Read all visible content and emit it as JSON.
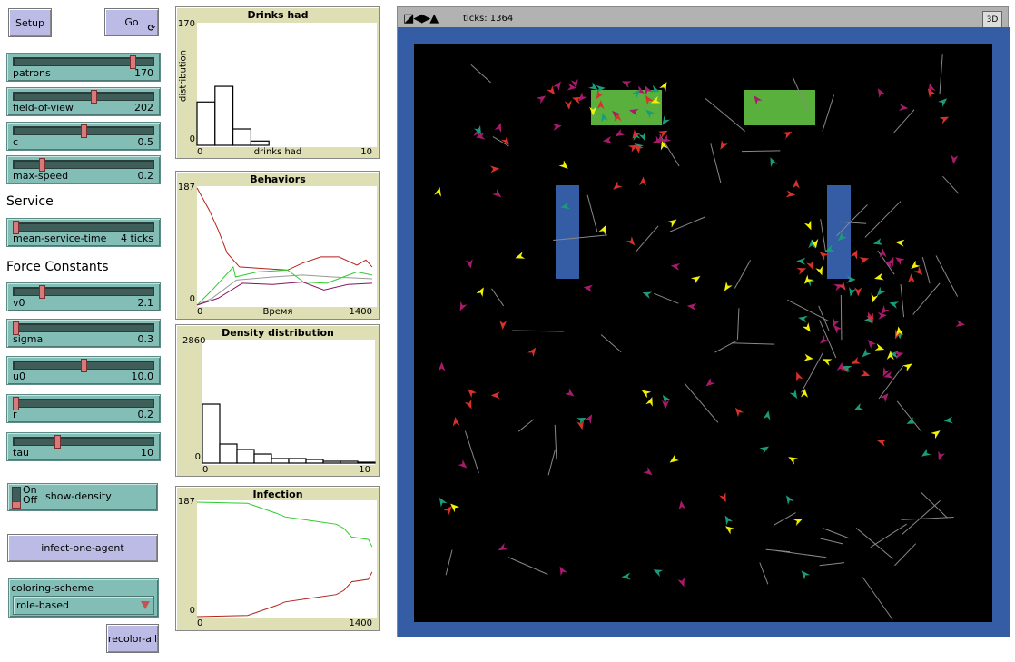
{
  "buttons": {
    "setup": "Setup",
    "go": "Go",
    "infect": "infect-one-agent",
    "recolor": "recolor-all"
  },
  "sliders": [
    {
      "label": "patrons",
      "value": "170",
      "level": 0.85
    },
    {
      "label": "field-of-view",
      "value": "202",
      "level": 0.57
    },
    {
      "label": "c",
      "value": "0.5",
      "level": 0.5
    },
    {
      "label": "max-speed",
      "value": "0.2",
      "level": 0.2
    },
    {
      "label": "mean-service-time",
      "value": "4 ticks",
      "level": 0.01
    },
    {
      "label": "v0",
      "value": "2.1",
      "level": 0.2
    },
    {
      "label": "sigma",
      "value": "0.3",
      "level": 0.01
    },
    {
      "label": "u0",
      "value": "10.0",
      "level": 0.5
    },
    {
      "label": "r",
      "value": "0.2",
      "level": 0.01
    },
    {
      "label": "tau",
      "value": "10",
      "level": 0.31
    }
  ],
  "sections": {
    "service": "Service",
    "force": "Force Constants"
  },
  "switch": {
    "label": "show-density",
    "on": "On",
    "off": "Off",
    "state": "off"
  },
  "chooser": {
    "label": "coloring-scheme",
    "value": "role-based"
  },
  "view": {
    "ticks_label": "ticks: 1364",
    "btn3d": "3D"
  },
  "colors": {
    "red": "#d73229",
    "yellow": "#f1f105",
    "magenta": "#a71b6a",
    "teal": "#1a9b7a",
    "green": "#59b03c",
    "blue": "#345da6",
    "plot_bg": "#dfdfb6",
    "widget": "#82bdb6",
    "button": "#bbbbe6"
  },
  "chart_data": [
    {
      "type": "bar",
      "title": "Drinks had",
      "xlabel": "drinks had",
      "ylabel": "distribution",
      "xlim": [
        0,
        10
      ],
      "ylim": [
        0,
        170
      ],
      "x_ticks": [
        "0",
        "10"
      ],
      "y_ticks": [
        "0",
        "170"
      ],
      "bins": [
        0,
        1,
        2,
        3
      ],
      "values": [
        61,
        83,
        23,
        6
      ]
    },
    {
      "type": "line",
      "title": "Behaviors",
      "xlabel": "Время",
      "xlim": [
        0,
        1400
      ],
      "ylim": [
        0,
        187
      ],
      "x_ticks": [
        "0",
        "1400"
      ],
      "y_ticks": [
        "0",
        "187"
      ],
      "series": [
        {
          "color": "#b5221d",
          "x": [
            0,
            94,
            165,
            235,
            330,
            470,
            705,
            820,
            965,
            1105,
            1245,
            1315,
            1364
          ],
          "y": [
            187,
            152,
            120,
            83,
            61,
            59,
            56,
            67,
            77,
            77,
            64,
            72,
            61
          ]
        },
        {
          "color": "#2ecc2e",
          "x": [
            0,
            118,
            282,
            300,
            470,
            705,
            830,
            1010,
            1245,
            1364
          ],
          "y": [
            0,
            24,
            61,
            45,
            53,
            56,
            37,
            35,
            53,
            48
          ]
        },
        {
          "color": "#999999",
          "x": [
            0,
            118,
            306,
            588,
            823,
            1058,
            1364
          ],
          "y": [
            0,
            11,
            40,
            45,
            48,
            45,
            42
          ]
        },
        {
          "color": "#8a1060",
          "x": [
            0,
            165,
            353,
            588,
            823,
            988,
            1176,
            1364
          ],
          "y": [
            0,
            11,
            35,
            33,
            37,
            24,
            33,
            35
          ]
        }
      ]
    },
    {
      "type": "bar",
      "title": "Density distribution",
      "xlim": [
        0,
        10
      ],
      "ylim": [
        0,
        2860
      ],
      "x_ticks": [
        "0",
        "10"
      ],
      "y_ticks": [
        "0",
        "2860"
      ],
      "bins": [
        0,
        1,
        2,
        3,
        4,
        5,
        6,
        7,
        8,
        9
      ],
      "values": [
        1387,
        448,
        320,
        213,
        107,
        107,
        85,
        43,
        43,
        21
      ]
    },
    {
      "type": "line",
      "title": "Infection",
      "xlim": [
        0,
        1400
      ],
      "ylim": [
        0,
        187
      ],
      "x_ticks": [
        "0",
        "1400"
      ],
      "y_ticks": [
        "0",
        "187"
      ],
      "series": [
        {
          "color": "#2ecc2e",
          "x": [
            0,
            394,
            616,
            686,
            884,
            1085,
            1145,
            1205,
            1335,
            1364
          ],
          "y": [
            187,
            185,
            169,
            163,
            157,
            151,
            144,
            130,
            126,
            114
          ]
        },
        {
          "color": "#b5221d",
          "x": [
            0,
            394,
            616,
            686,
            884,
            1085,
            1145,
            1205,
            1335,
            1364
          ],
          "y": [
            0,
            2,
            18,
            24,
            30,
            36,
            43,
            57,
            61,
            73
          ]
        }
      ]
    }
  ]
}
